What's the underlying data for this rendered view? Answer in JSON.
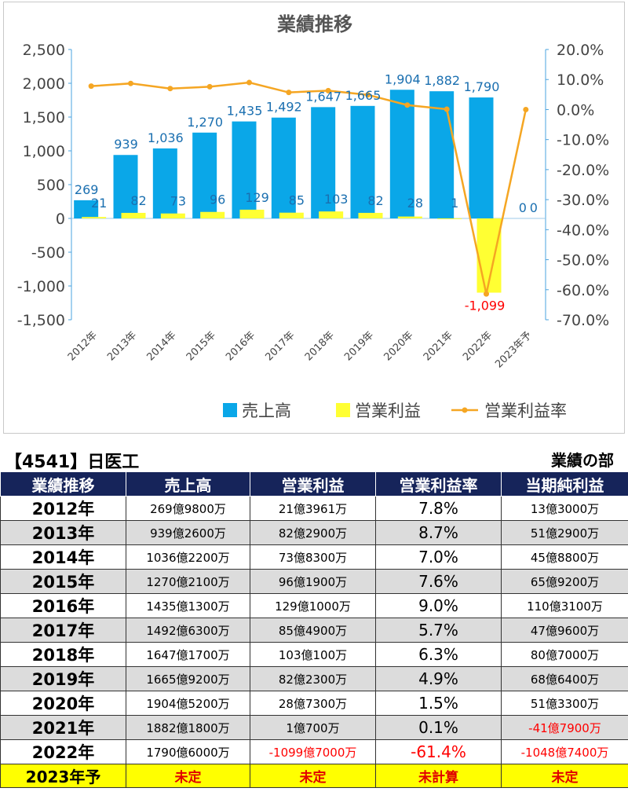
{
  "chart_data": {
    "type": "bar",
    "title": "業績推移",
    "categories": [
      "2012年",
      "2013年",
      "2014年",
      "2015年",
      "2016年",
      "2017年",
      "2018年",
      "2019年",
      "2020年",
      "2021年",
      "2022年",
      "2023年予"
    ],
    "series": [
      {
        "name": "売上高",
        "type": "bar",
        "axis": "left",
        "color": "#0aa7e8",
        "values": [
          269,
          939,
          1036,
          1270,
          1435,
          1492,
          1647,
          1665,
          1904,
          1882,
          1790,
          0
        ],
        "labels": [
          "269",
          "939",
          "1,036",
          "1,270",
          "1,435",
          "1,492",
          "1,647",
          "1,665",
          "1,904",
          "1,882",
          "1,790",
          "0"
        ]
      },
      {
        "name": "営業利益",
        "type": "bar",
        "axis": "left",
        "color": "#ffff33",
        "values": [
          21,
          82,
          73,
          96,
          129,
          85,
          103,
          82,
          28,
          1,
          -1099,
          0
        ],
        "labels": [
          "21",
          "82",
          "73",
          "96",
          "129",
          "85",
          "103",
          "82",
          "28",
          "1",
          "-1,099",
          "0"
        ]
      },
      {
        "name": "営業利益率",
        "type": "line",
        "axis": "right",
        "color": "#f5a623",
        "values": [
          7.8,
          8.7,
          7.0,
          7.6,
          9.0,
          5.7,
          6.3,
          4.9,
          1.5,
          0.1,
          -61.4,
          0
        ]
      }
    ],
    "ylim": [
      -1500,
      2500
    ],
    "y_ticks": [
      "2,500",
      "2,000",
      "1,500",
      "1,000",
      "500",
      "0",
      "-500",
      "-1,000",
      "-1,500"
    ],
    "y2lim": [
      -70,
      20
    ],
    "y2_ticks": [
      "20.0%",
      "10.0%",
      "0.0%",
      "-10.0%",
      "-20.0%",
      "-30.0%",
      "-40.0%",
      "-50.0%",
      "-60.0%",
      "-70.0%"
    ],
    "legend_position": "bottom-right",
    "grid": false
  },
  "company_title": "【4541】日医工",
  "section_label": "業績の部",
  "table": {
    "headers": [
      "業績推移",
      "売上高",
      "営業利益",
      "営業利益率",
      "当期純利益"
    ],
    "rows": [
      [
        "2012年",
        "269億9800万",
        "21億3961万",
        "7.8%",
        "13億3000万"
      ],
      [
        "2013年",
        "939億2600万",
        "82億2900万",
        "8.7%",
        "51億2900万"
      ],
      [
        "2014年",
        "1036億2200万",
        "73億8300万",
        "7.0%",
        "45億8800万"
      ],
      [
        "2015年",
        "1270億2100万",
        "96億1900万",
        "7.6%",
        "65億9200万"
      ],
      [
        "2016年",
        "1435億1300万",
        "129億1000万",
        "9.0%",
        "110億3100万"
      ],
      [
        "2017年",
        "1492億6300万",
        "85億4900万",
        "5.7%",
        "47億9600万"
      ],
      [
        "2018年",
        "1647億1700万",
        "103億100万",
        "6.3%",
        "80億7000万"
      ],
      [
        "2019年",
        "1665億9200万",
        "82億2300万",
        "4.9%",
        "68億6400万"
      ],
      [
        "2020年",
        "1904億5200万",
        "28億7300万",
        "1.5%",
        "51億3300万"
      ],
      [
        "2021年",
        "1882億1800万",
        "1億700万",
        "0.1%",
        "-41億7900万"
      ],
      [
        "2022年",
        "1790億6000万",
        "-1099億7000万",
        "-61.4%",
        "-1048億7400万"
      ],
      [
        "2023年予",
        "未定",
        "未定",
        "未計算",
        "未定"
      ]
    ]
  }
}
